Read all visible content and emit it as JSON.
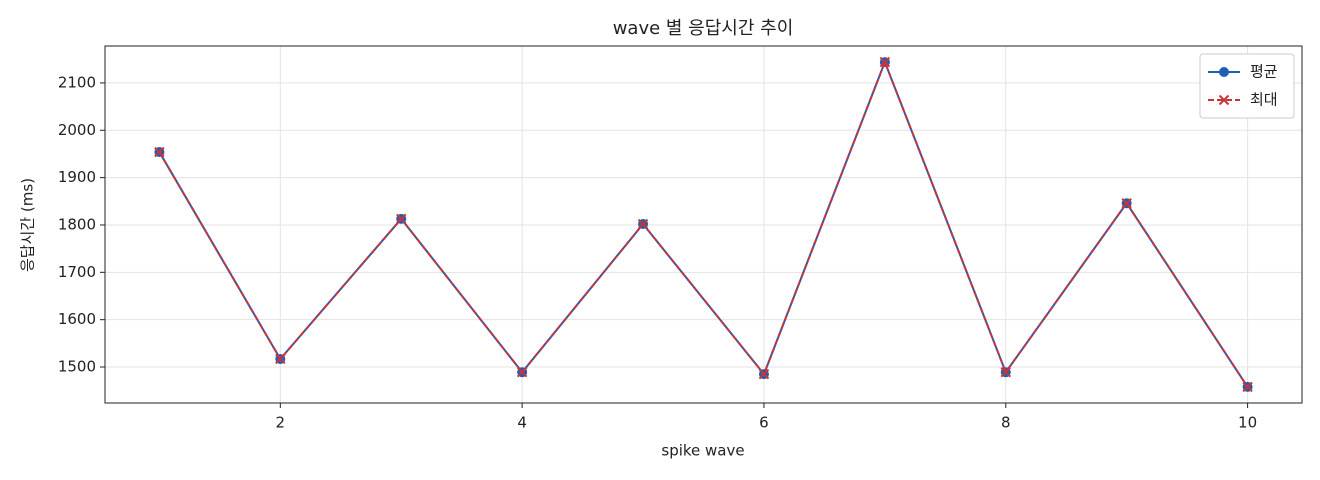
{
  "chart_data": {
    "type": "line",
    "title": "wave 별 응답시간 추이",
    "xlabel": "spike wave",
    "ylabel": "응답시간 (ms)",
    "x": [
      1,
      2,
      3,
      4,
      5,
      6,
      7,
      8,
      9,
      10
    ],
    "series": [
      {
        "name": "평균",
        "color": "#1f5fb4",
        "marker": "o",
        "dash": false,
        "values": [
          1954,
          1517,
          1813,
          1489,
          1802,
          1485,
          2144,
          1489,
          1846,
          1458
        ]
      },
      {
        "name": "최대",
        "color": "#c8343a",
        "marker": "x",
        "dash": true,
        "values": [
          1954,
          1517,
          1813,
          1489,
          1802,
          1485,
          2144,
          1489,
          1846,
          1458
        ]
      }
    ],
    "xlim": [
      0.55,
      10.45
    ],
    "ylim": [
      1424,
      2178
    ],
    "xticks": [
      2,
      4,
      6,
      8,
      10
    ],
    "yticks": [
      1500,
      1600,
      1700,
      1800,
      1900,
      2000,
      2100
    ],
    "grid": true,
    "legend": "upper right"
  }
}
